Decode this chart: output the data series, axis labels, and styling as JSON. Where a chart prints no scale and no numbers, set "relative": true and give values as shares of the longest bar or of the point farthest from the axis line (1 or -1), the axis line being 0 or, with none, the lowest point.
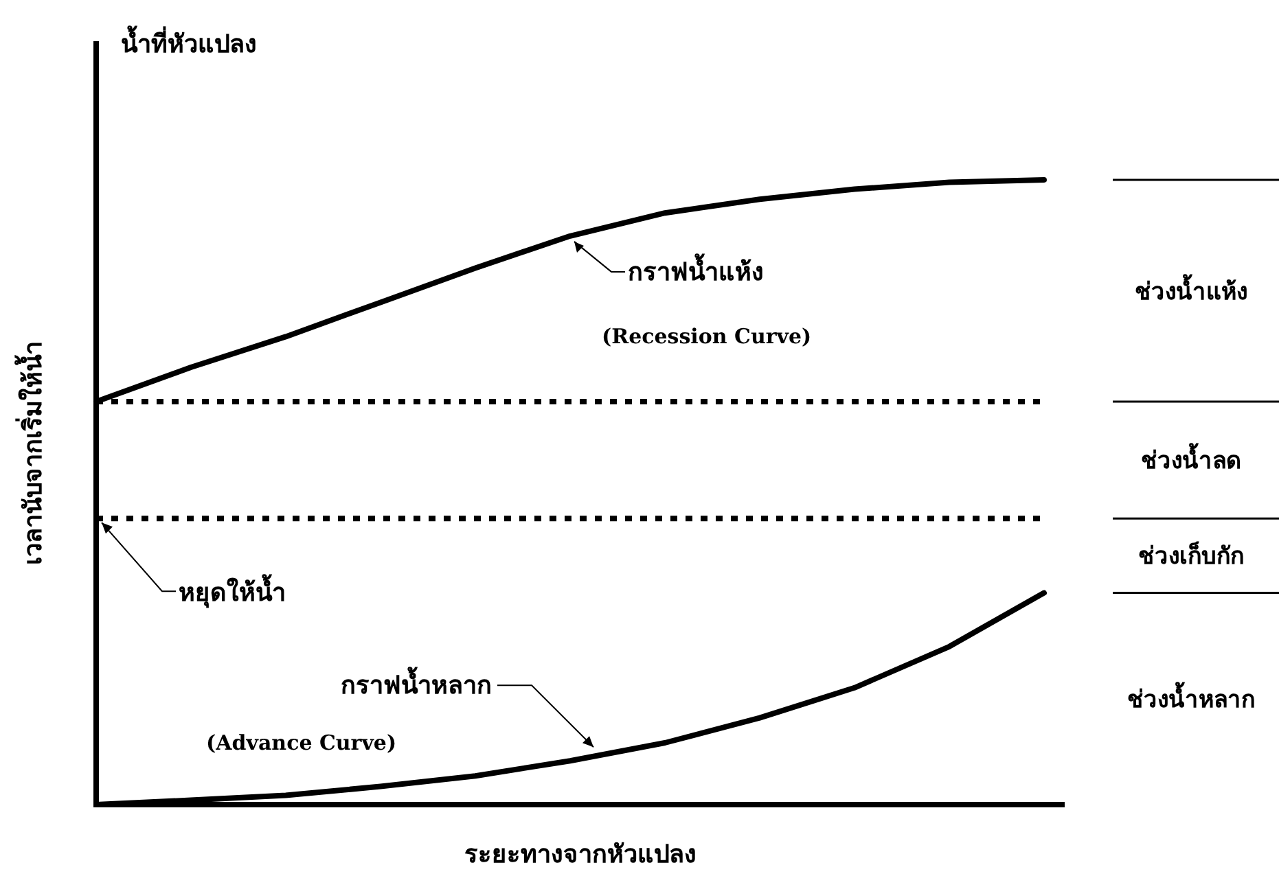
{
  "chart_data": {
    "type": "line",
    "title": "น้ำที่หัวแปลง",
    "xlabel": "ระยะทางจากหัวแปลง",
    "ylabel": "เวลานับจากเริ่มให้น้ำ",
    "relative": true,
    "line_style": "solid",
    "categories": [
      null,
      null,
      null,
      null,
      null,
      null,
      null,
      null,
      null,
      null,
      null
    ],
    "series": [
      {
        "name": "กราฟน้ำแห้ง",
        "color": "#000000",
        "values": [
          0.645,
          0.7,
          0.749,
          0.804,
          0.859,
          0.91,
          0.947,
          0.969,
          0.985,
          0.996,
          1
        ]
      },
      {
        "name": "กราฟน้ำหลาก",
        "color": "#000000",
        "values": [
          0,
          0.007,
          0.015,
          0.029,
          0.046,
          0.07,
          0.099,
          0.139,
          0.187,
          0.253,
          0.339
        ]
      }
    ],
    "annotations": [
      "(Recession Curve)",
      "(Advance Curve)",
      "ช่วงน้ำแห้ง",
      "ช่วงน้ำลด",
      "ช่วงเก็บกัก",
      "ช่วงน้ำหลาก"
    ],
    "ref_lines": [
      {
        "axis": "y",
        "value": 0.645,
        "color": "#000000",
        "line_style": "dotted"
      },
      {
        "axis": "y",
        "value": 0.458,
        "label": "หยุดให้น้ำ",
        "color": "#000000",
        "line_style": "dotted"
      }
    ]
  }
}
